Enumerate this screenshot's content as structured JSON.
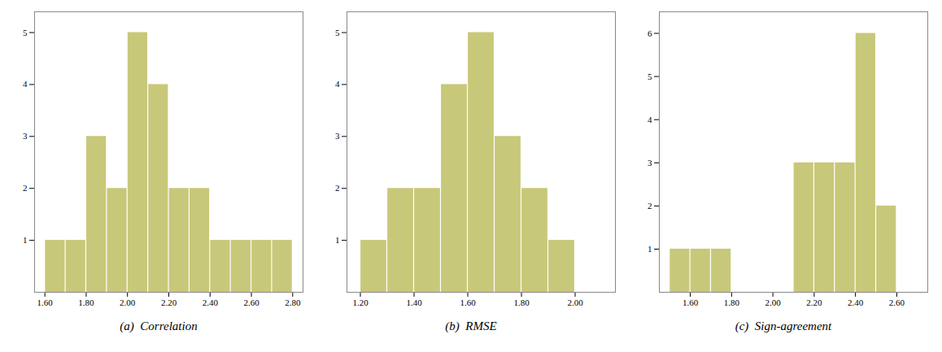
{
  "chart_data": [
    {
      "type": "histogram",
      "xlabel": "(a)  Correlation",
      "bins": [
        1.6,
        1.7,
        1.8,
        1.9,
        2.0,
        2.1,
        2.2,
        2.3,
        2.4,
        2.5,
        2.6,
        2.7,
        2.8
      ],
      "counts": [
        1,
        1,
        3,
        2,
        5,
        4,
        2,
        2,
        1,
        1,
        1,
        1
      ],
      "color": "#c8c87a",
      "xlim": [
        1.55,
        2.85
      ],
      "xticks": [
        {
          "value": 1.6,
          "label": "1.60"
        },
        {
          "value": 1.8,
          "label": "1.80"
        },
        {
          "value": 2.0,
          "label": "2.00"
        },
        {
          "value": 2.2,
          "label": "2.20"
        },
        {
          "value": 2.4,
          "label": "2.40"
        },
        {
          "value": 2.6,
          "label": "2.60"
        },
        {
          "value": 2.8,
          "label": "2.80"
        }
      ],
      "ylim": [
        0,
        5.4
      ],
      "yticks": [
        1,
        2,
        3,
        4,
        5
      ],
      "grid": false
    },
    {
      "type": "histogram",
      "xlabel": "(b)  RMSE",
      "bins": [
        1.2,
        1.3,
        1.4,
        1.5,
        1.6,
        1.7,
        1.8,
        1.9,
        2.0,
        2.1
      ],
      "counts": [
        1,
        2,
        2,
        4,
        5,
        3,
        2,
        1,
        0
      ],
      "color": "#c8c87a",
      "xlim": [
        1.15,
        2.15
      ],
      "xticks": [
        {
          "value": 1.2,
          "label": "1.20"
        },
        {
          "value": 1.4,
          "label": "1.40"
        },
        {
          "value": 1.6,
          "label": "1.60"
        },
        {
          "value": 1.8,
          "label": "1.80"
        },
        {
          "value": 2.0,
          "label": "2.00"
        }
      ],
      "ylim": [
        0,
        5.4
      ],
      "yticks": [
        1,
        2,
        3,
        4,
        5
      ],
      "grid": false
    },
    {
      "type": "histogram",
      "xlabel": "(c)  Sign-agreement",
      "bins": [
        1.5,
        1.6,
        1.7,
        1.8,
        1.9,
        2.0,
        2.1,
        2.2,
        2.3,
        2.4,
        2.5,
        2.6,
        2.7
      ],
      "counts": [
        1,
        1,
        1,
        0,
        0,
        0,
        3,
        3,
        3,
        6,
        2,
        0
      ],
      "color": "#c8c87a",
      "xlim": [
        1.45,
        2.75
      ],
      "xticks": [
        {
          "value": 1.6,
          "label": "1.60"
        },
        {
          "value": 1.8,
          "label": "1.80"
        },
        {
          "value": 2.0,
          "label": "2.00"
        },
        {
          "value": 2.2,
          "label": "2.20"
        },
        {
          "value": 2.4,
          "label": "2.40"
        },
        {
          "value": 2.6,
          "label": "2.60"
        }
      ],
      "ylim": [
        0,
        6.5
      ],
      "yticks": [
        1,
        2,
        3,
        4,
        5,
        6
      ],
      "grid": false
    }
  ]
}
